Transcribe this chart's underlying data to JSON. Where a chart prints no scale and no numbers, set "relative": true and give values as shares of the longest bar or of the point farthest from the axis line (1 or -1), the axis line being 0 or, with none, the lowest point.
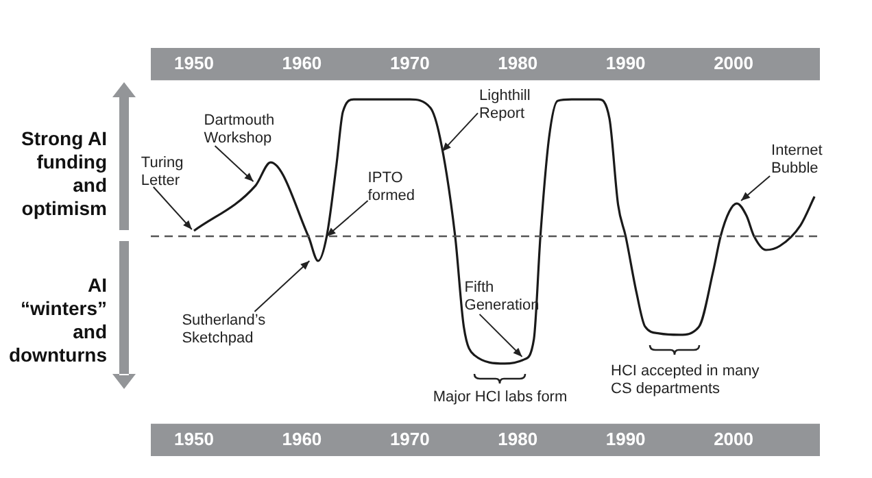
{
  "chart_data": {
    "type": "line",
    "relative": true,
    "legend": false,
    "grid": false,
    "xlim": [
      1946,
      2008
    ],
    "xticks": [
      1950,
      1960,
      1970,
      1980,
      1990,
      2000
    ],
    "x2lim": [
      1946,
      2008
    ],
    "x2ticks": [
      1950,
      1960,
      1970,
      1980,
      1990,
      2000
    ],
    "x": [
      1950,
      1955.7,
      1957.1,
      1960.6,
      1961.5,
      1962.3,
      1963.2,
      1963.8,
      1964.8,
      1970,
      1971.9,
      1972.8,
      1974.2,
      1975,
      1976,
      1978.8,
      1980.6,
      1981.5,
      1982.1,
      1982.9,
      1983.7,
      1985,
      1987.5,
      1988.5,
      1989.3,
      1990,
      1991,
      1991.8,
      1993.1,
      1995,
      1996.8,
      1998.1,
      1998.8,
      1999.6,
      2000.3,
      2001.2,
      2001.9,
      2003,
      2004.3,
      2006.2,
      2007.5
    ],
    "series": [
      {
        "color": "#1a1a1a",
        "values": [
          0.04,
          0.37,
          0.54,
          0,
          -0.18,
          0,
          0.52,
          0.91,
          1,
          1,
          0.94,
          0.72,
          0,
          -0.66,
          -0.87,
          -0.93,
          -0.9,
          -0.75,
          0,
          0.72,
          0.99,
          1,
          1,
          0.86,
          0.23,
          0,
          -0.41,
          -0.66,
          -0.71,
          -0.72,
          -0.66,
          -0.26,
          0,
          0.18,
          0.24,
          0.15,
          0,
          -0.1,
          -0.07,
          0.08,
          0.29
        ]
      }
    ],
    "ref_lines": [
      {
        "axis": "y",
        "value": 0,
        "color": "#555555",
        "line_style": "dashed"
      }
    ],
    "annotations": [
      {
        "text": "Turing\nLetter",
        "x": 1949.8,
        "y": 0.05
      },
      {
        "text": "Dartmouth\nWorkshop",
        "x": 1955.5,
        "y": 0.4
      },
      {
        "text": "IPTO\nformed",
        "x": 1962.3,
        "y": 0
      },
      {
        "text": "Sutherland’s\nSketchpad",
        "x": 1960.7,
        "y": -0.18
      },
      {
        "text": "Lighthill\nReport",
        "x": 1973,
        "y": 0.62
      },
      {
        "text": "Fifth\nGeneration",
        "x": 1980.4,
        "y": -0.88
      },
      {
        "text": "Major HCI labs form",
        "x": 1978.3,
        "y": -0.93
      },
      {
        "text": "HCI accepted in many\nCS departments",
        "x": 1994.6,
        "y": -0.72
      },
      {
        "text": "Internet\nBubble",
        "x": 2000.7,
        "y": 0.26
      },
      "Strong AI\nfunding\nand\noptimism",
      "AI\n“winters”\nand\ndownturns"
    ]
  }
}
